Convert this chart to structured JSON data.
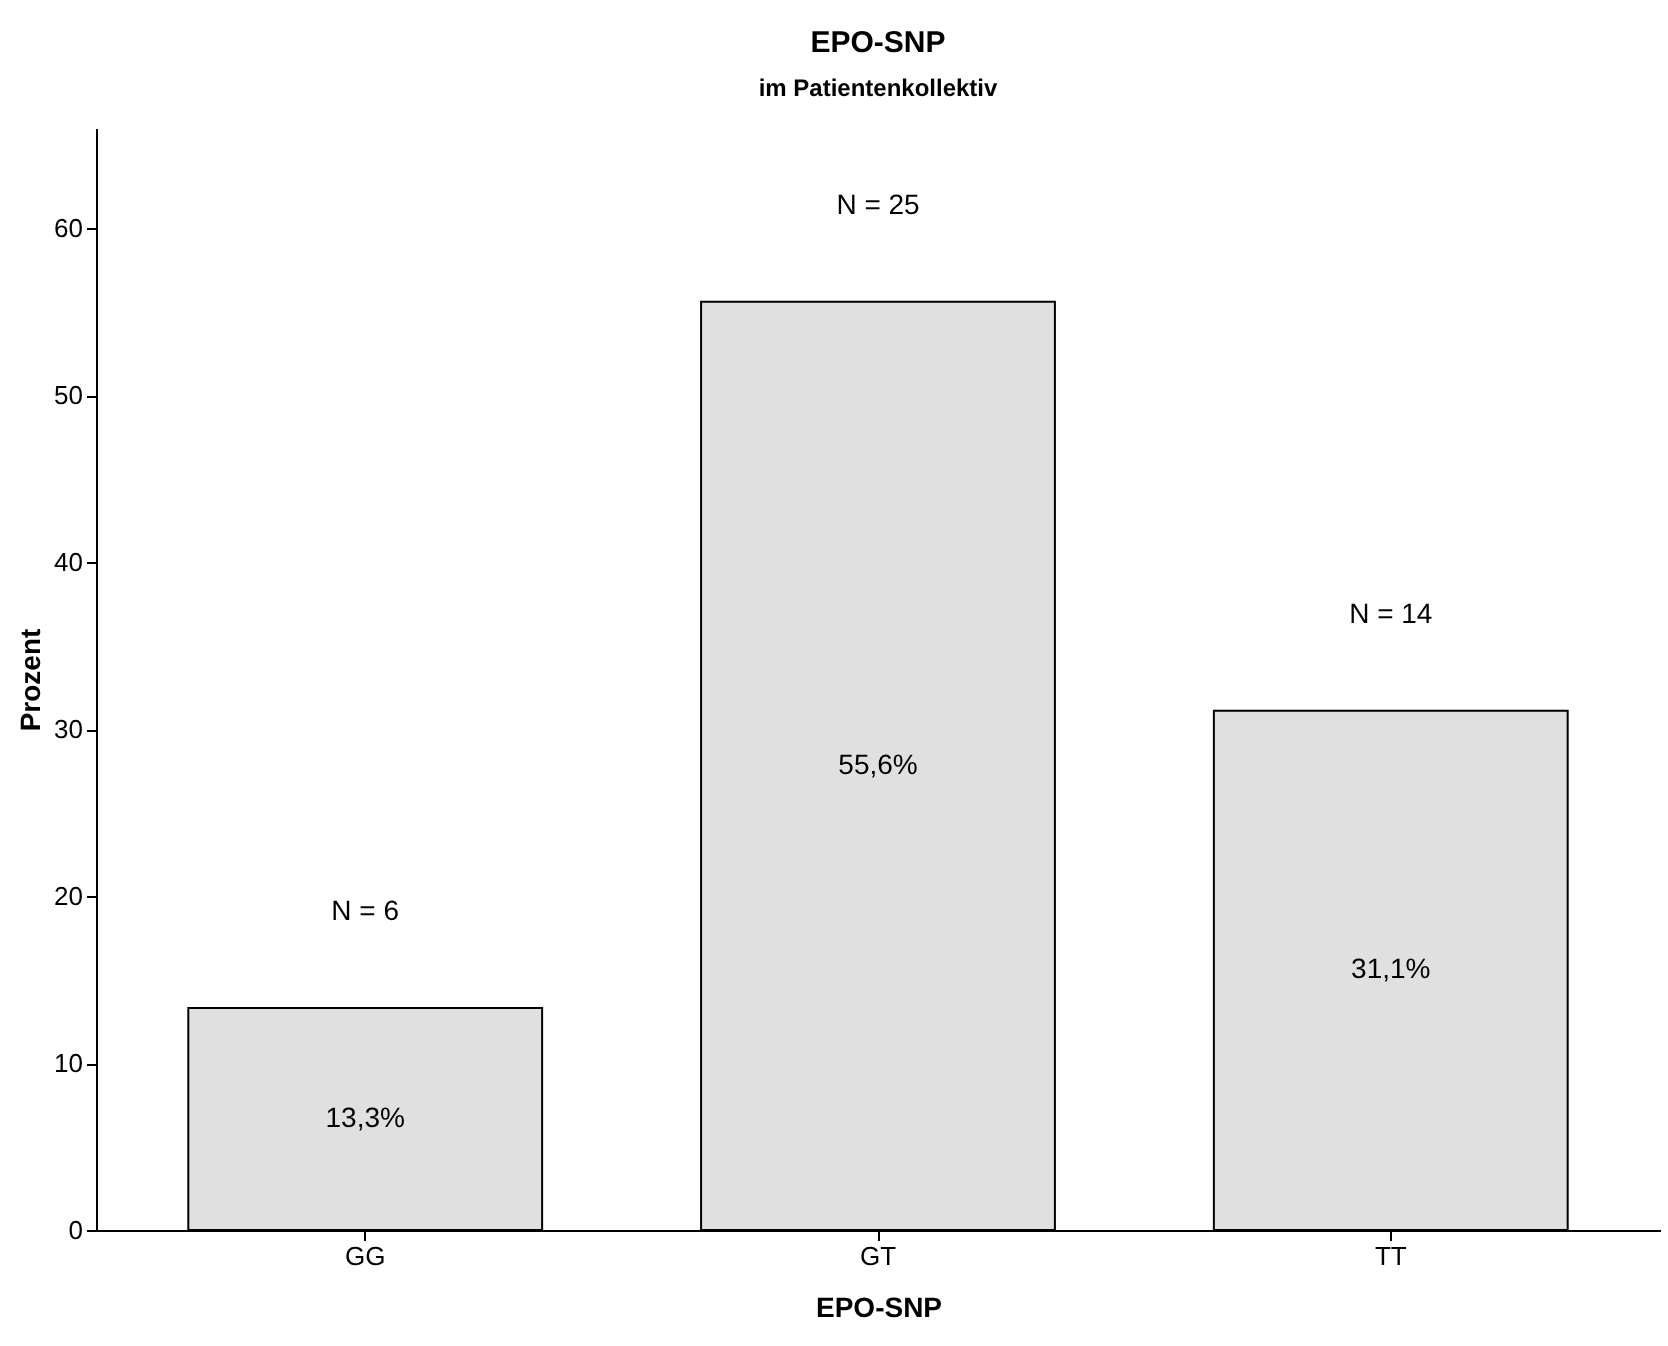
{
  "chart_data": {
    "type": "bar",
    "title": "EPO-SNP",
    "subtitle": "im Patientenkollektiv",
    "xlabel": "EPO-SNP",
    "ylabel": "Prozent",
    "categories": [
      "GG",
      "GT",
      "TT"
    ],
    "values": [
      13.3,
      55.6,
      31.1
    ],
    "value_labels": [
      "13,3%",
      "55,6%",
      "31,1%"
    ],
    "color": "#e0e0e0",
    "ylim": [
      0,
      66
    ],
    "yticks": [
      0,
      10,
      20,
      30,
      40,
      50,
      60
    ],
    "grid": false,
    "annotations": [
      "N = 6",
      "N = 25",
      "N = 14"
    ]
  }
}
